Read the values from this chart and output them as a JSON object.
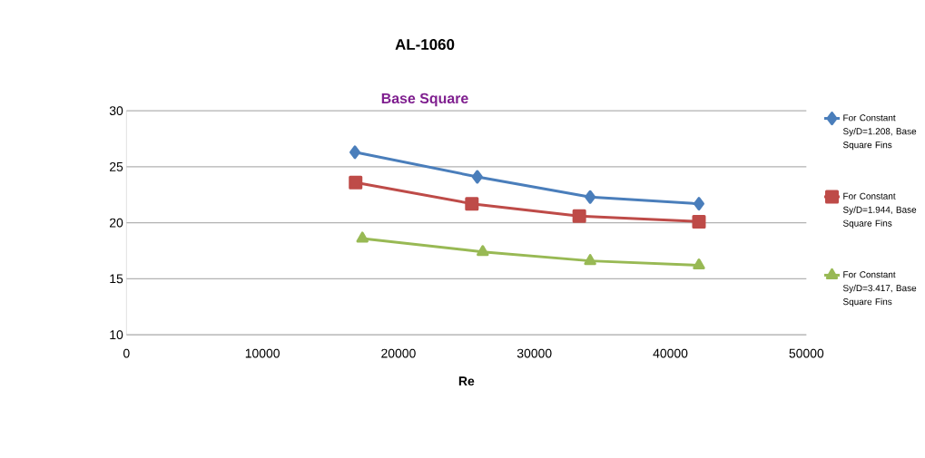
{
  "chart_data": {
    "type": "line",
    "title": "AL-1060",
    "subtitle": "Base Square",
    "xlabel": "Re",
    "xlim": [
      0,
      50000
    ],
    "xticks": [
      0,
      10000,
      20000,
      30000,
      40000,
      50000
    ],
    "ylim": [
      10,
      30
    ],
    "yticks": [
      10,
      15,
      20,
      25,
      30
    ],
    "grid": "y",
    "legend": "right",
    "line_style": "solid",
    "series": [
      {
        "name": "For Constant Sy/D=1.208, Base Square Fins",
        "color": "#4a7ebb",
        "marker": "diamond",
        "x": [
          16800,
          25800,
          34100,
          42100
        ],
        "values": [
          26.3,
          24.1,
          22.3,
          21.7
        ]
      },
      {
        "name": "For Constant Sy/D=1.944, Base Square Fins",
        "color": "#be4b48",
        "marker": "square",
        "x": [
          16850,
          25400,
          33300,
          42100
        ],
        "values": [
          23.6,
          21.7,
          20.6,
          20.1
        ]
      },
      {
        "name": "For Constant Sy/D=3.417, Base Square Fins",
        "color": "#98b954",
        "marker": "triangle",
        "x": [
          17350,
          26200,
          34100,
          42100
        ],
        "values": [
          18.6,
          17.4,
          16.6,
          16.2
        ]
      }
    ]
  }
}
